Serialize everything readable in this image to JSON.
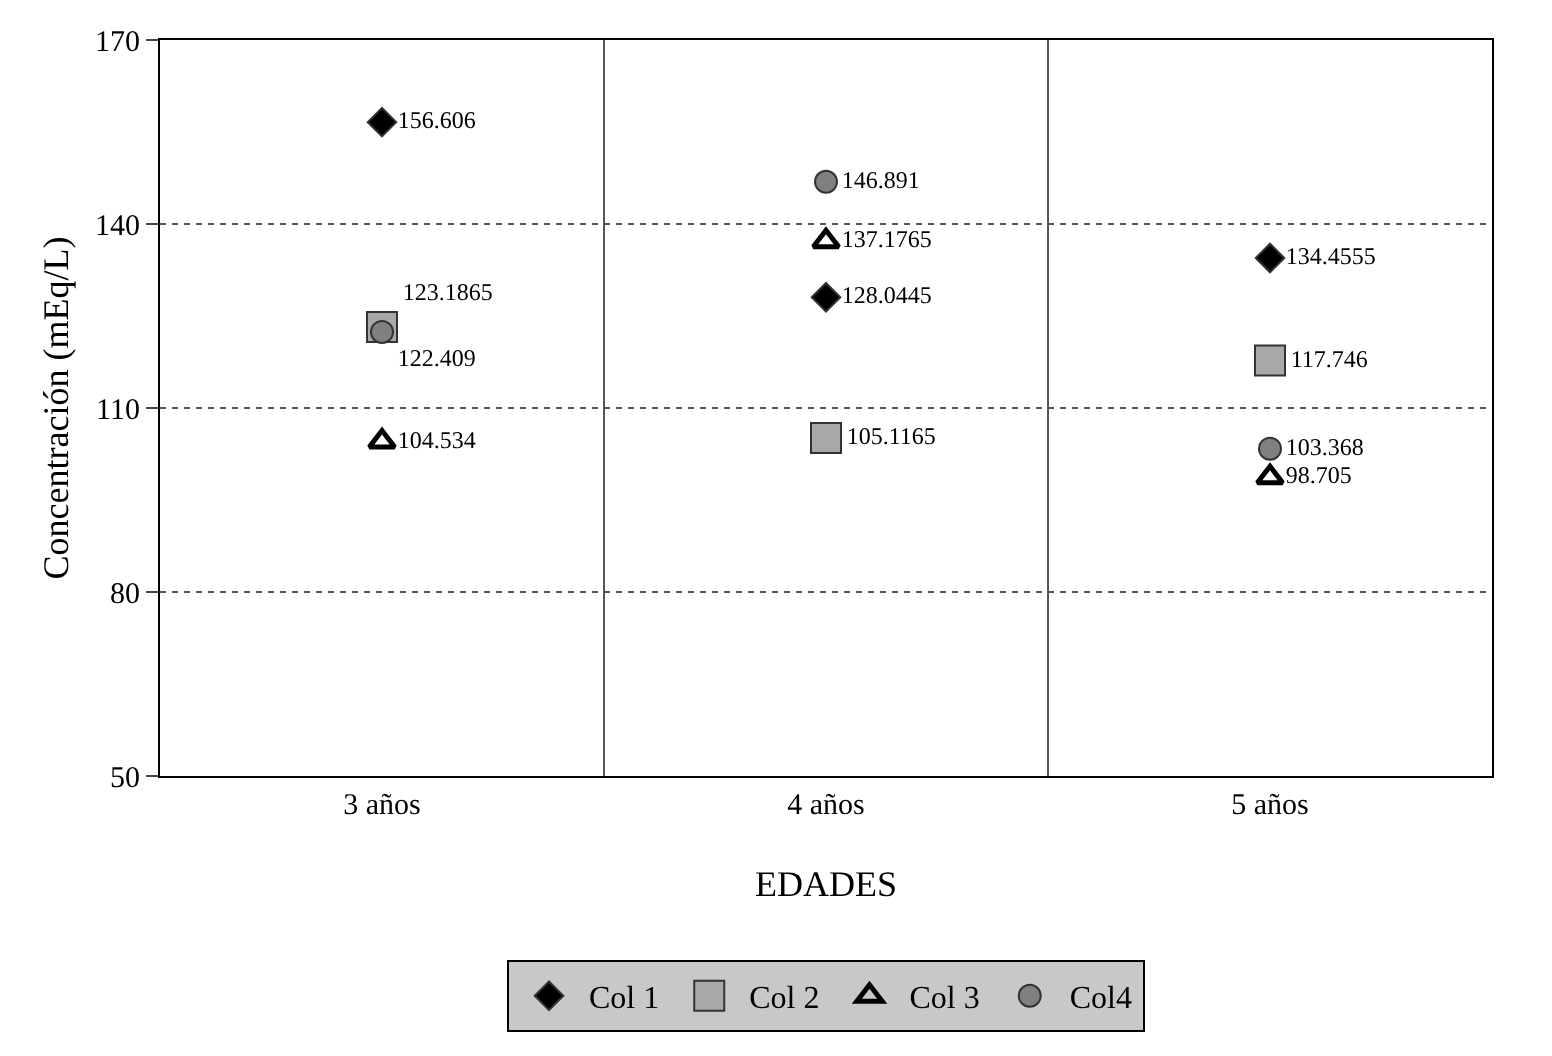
{
  "chart_data": {
    "type": "scatter",
    "xlabel": "EDADES",
    "ylabel": "Concentración (mEq/L)",
    "categories": [
      "3 años",
      "4 años",
      "5 años"
    ],
    "series": [
      {
        "name": "Col 1",
        "color": "#000000",
        "marker": "diamond",
        "values": [
          156.606,
          128.0445,
          134.4555
        ]
      },
      {
        "name": "Col 2",
        "color": "#a8a8a8",
        "marker": "square",
        "values": [
          123.1865,
          105.1165,
          117.746
        ]
      },
      {
        "name": "Col 3",
        "color": "#000000",
        "marker": "triangle",
        "values": [
          104.534,
          137.1765,
          98.705
        ]
      },
      {
        "name": "Col4",
        "color": "#808080",
        "marker": "circle",
        "values": [
          122.409,
          146.891,
          103.368
        ]
      }
    ],
    "ylim": [
      50,
      170
    ],
    "yticks": [
      50,
      80,
      110,
      140,
      170
    ],
    "grid": true,
    "legend": "bottom",
    "data_labels": true
  }
}
